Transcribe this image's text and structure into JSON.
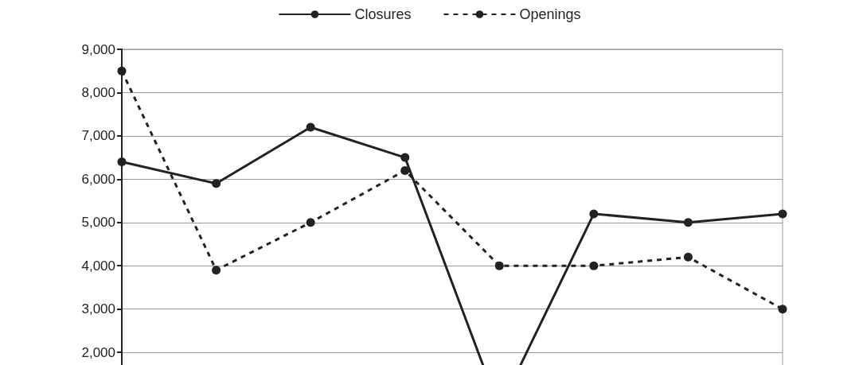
{
  "chart_data": {
    "type": "line",
    "categories": [
      null,
      null,
      null,
      null,
      null,
      null,
      null,
      null
    ],
    "series": [
      {
        "name": "Closures",
        "color": "#222222",
        "line_style": "solid",
        "values": [
          6400,
          5900,
          7200,
          6500,
          700,
          5200,
          5000,
          5200
        ]
      },
      {
        "name": "Openings",
        "color": "#222222",
        "line_style": "dashed",
        "values": [
          8500,
          3900,
          5000,
          6200,
          4000,
          4000,
          4200,
          3000
        ]
      }
    ],
    "ylim": [
      0,
      9000
    ],
    "yticks": [
      {
        "value": 2000,
        "label": "2,000"
      },
      {
        "value": 3000,
        "label": "3,000"
      },
      {
        "value": 4000,
        "label": "4,000"
      },
      {
        "value": 5000,
        "label": "5,000"
      },
      {
        "value": 6000,
        "label": "6,000"
      },
      {
        "value": 7000,
        "label": "7,000"
      },
      {
        "value": 8000,
        "label": "8,000"
      },
      {
        "value": 9000,
        "label": "9,000"
      }
    ],
    "grid": "y",
    "legend": "top",
    "marker": "circle"
  }
}
